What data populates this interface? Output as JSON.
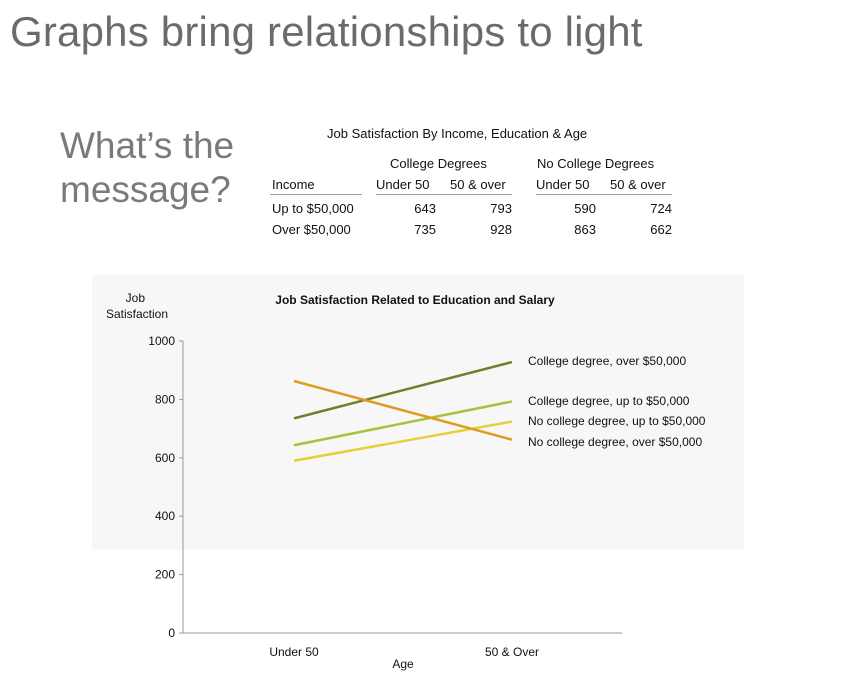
{
  "slide": {
    "title": "Graphs bring relationships to light",
    "question_line1": "What’s the",
    "question_line2": "message?"
  },
  "table": {
    "title": "Job Satisfaction By Income, Education & Age",
    "group_headers": [
      "College Degrees",
      "No College Degrees"
    ],
    "row_header_label": "Income",
    "sub_headers": [
      "Under 50",
      "50 & over",
      "Under 50",
      "50 & over"
    ],
    "rows": [
      {
        "label": "Up to $50,000",
        "values": [
          "643",
          "793",
          "590",
          "724"
        ]
      },
      {
        "label": "Over $50,000",
        "values": [
          "735",
          "928",
          "863",
          "662"
        ]
      }
    ]
  },
  "chart_data": {
    "type": "line",
    "title": "Job Satisfaction Related to Education and Salary",
    "ylabel": "Job Satisfaction",
    "xlabel": "Age",
    "categories": [
      "Under 50",
      "50 & Over"
    ],
    "ylim": [
      0,
      1000
    ],
    "yticks": [
      0,
      200,
      400,
      600,
      800,
      1000
    ],
    "grid": false,
    "legend": "direct labels at right end of lines",
    "series": [
      {
        "name": "College degree, over $50,000",
        "values": [
          735,
          928
        ],
        "color": "#6f7f2c"
      },
      {
        "name": "College degree, up to $50,000",
        "values": [
          643,
          793
        ],
        "color": "#a3c43c"
      },
      {
        "name": "No college degree, up to $50,000",
        "values": [
          590,
          724
        ],
        "color": "#e6cf3a"
      },
      {
        "name": "No college degree, over $50,000",
        "values": [
          863,
          662
        ],
        "color": "#e09a1e"
      }
    ]
  }
}
